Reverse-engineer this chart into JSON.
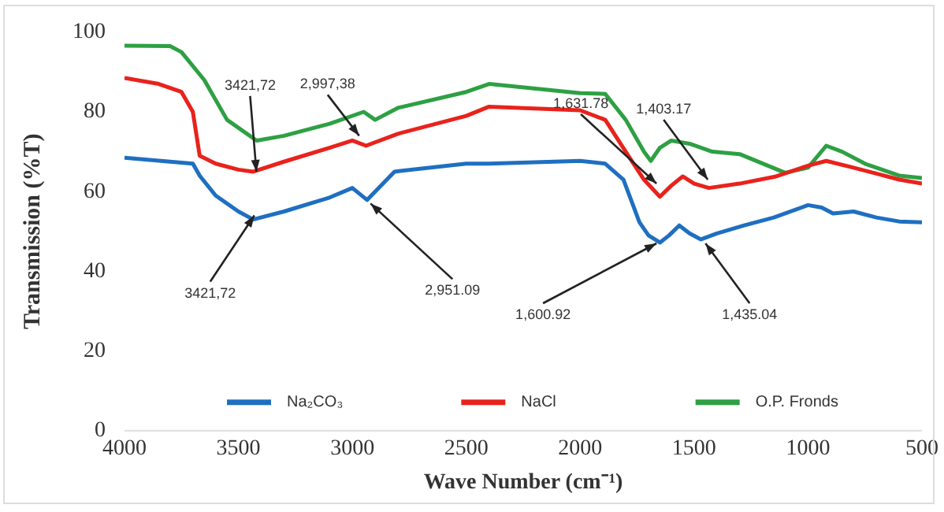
{
  "chart_data": {
    "type": "line",
    "xlabel": "Wave Number (cm⁻¹)",
    "ylabel": "Transmission (%T)",
    "xlim": [
      4000,
      500
    ],
    "xticks": [
      4000,
      3500,
      3000,
      2500,
      2000,
      1500,
      1000,
      500
    ],
    "ylim": [
      0,
      100
    ],
    "yticks": [
      0,
      20,
      40,
      60,
      80,
      100
    ],
    "grid": false,
    "legend": "bottom",
    "marker": "none",
    "line_style": "solid",
    "series": [
      {
        "name": "Na₂CO₃",
        "color": "#1f6fc1",
        "x": [
          4000,
          3800,
          3700,
          3670,
          3600,
          3500,
          3435,
          3300,
          3100,
          3000,
          2935,
          2815,
          2500,
          2400,
          2000,
          1890,
          1810,
          1740,
          1700,
          1650,
          1610,
          1565,
          1520,
          1470,
          1400,
          1280,
          1150,
          1000,
          940,
          890,
          800,
          700,
          600,
          500
        ],
        "values": [
          68.5,
          67.5,
          67,
          64,
          59,
          55,
          53,
          55,
          58.5,
          60.9,
          57.9,
          65,
          67,
          67,
          67.7,
          67,
          63,
          52.3,
          49,
          47.2,
          49,
          51.5,
          49.5,
          48,
          49.5,
          51.5,
          53.5,
          56.6,
          56,
          54.5,
          55,
          53.5,
          52.5,
          52.3
        ]
      },
      {
        "name": "NaCl",
        "color": "#e8231c",
        "x": [
          4000,
          3850,
          3750,
          3700,
          3670,
          3600,
          3500,
          3435,
          3300,
          3100,
          3000,
          2940,
          2800,
          2500,
          2400,
          2000,
          1890,
          1800,
          1720,
          1650,
          1600,
          1550,
          1500,
          1435,
          1300,
          1140,
          1000,
          920,
          800,
          700,
          600,
          500
        ],
        "values": [
          88.5,
          87,
          85,
          80,
          69,
          67,
          65.5,
          65,
          67.5,
          71,
          72.8,
          71.5,
          74.5,
          79,
          81.3,
          80.4,
          78,
          70,
          63,
          58.7,
          61.5,
          63.8,
          62,
          60.9,
          62,
          63.8,
          66.5,
          67.7,
          66,
          64.5,
          63,
          62
        ]
      },
      {
        "name": "O.P. Fronds",
        "color": "#2ea043",
        "x": [
          4000,
          3800,
          3750,
          3650,
          3550,
          3420,
          3300,
          3100,
          2950,
          2900,
          2800,
          2500,
          2400,
          2000,
          1890,
          1800,
          1720,
          1690,
          1650,
          1600,
          1520,
          1420,
          1300,
          1100,
          1000,
          920,
          850,
          750,
          600,
          500
        ],
        "values": [
          96.6,
          96.5,
          95,
          88,
          78,
          72.8,
          74,
          77,
          80,
          78,
          81,
          85,
          87,
          84.7,
          84.5,
          78,
          70,
          67.7,
          71,
          72.8,
          72,
          70,
          69.4,
          64.7,
          66,
          71.5,
          70,
          67,
          64,
          63.4
        ]
      }
    ],
    "annotations": [
      {
        "text": "3421,72",
        "x": 3421,
        "y": 65
      },
      {
        "text": "2,997,38",
        "x": 2970,
        "y": 74
      },
      {
        "text": "1,631.78",
        "x": 1665,
        "y": 62
      },
      {
        "text": "1,403.17",
        "x": 1440,
        "y": 63
      },
      {
        "text": "3421,72",
        "x": 3430,
        "y": 54
      },
      {
        "text": "2,951.09",
        "x": 2920,
        "y": 57
      },
      {
        "text": "1,600.92",
        "x": 1665,
        "y": 47
      },
      {
        "text": "1,435.04",
        "x": 1450,
        "y": 47
      }
    ]
  }
}
